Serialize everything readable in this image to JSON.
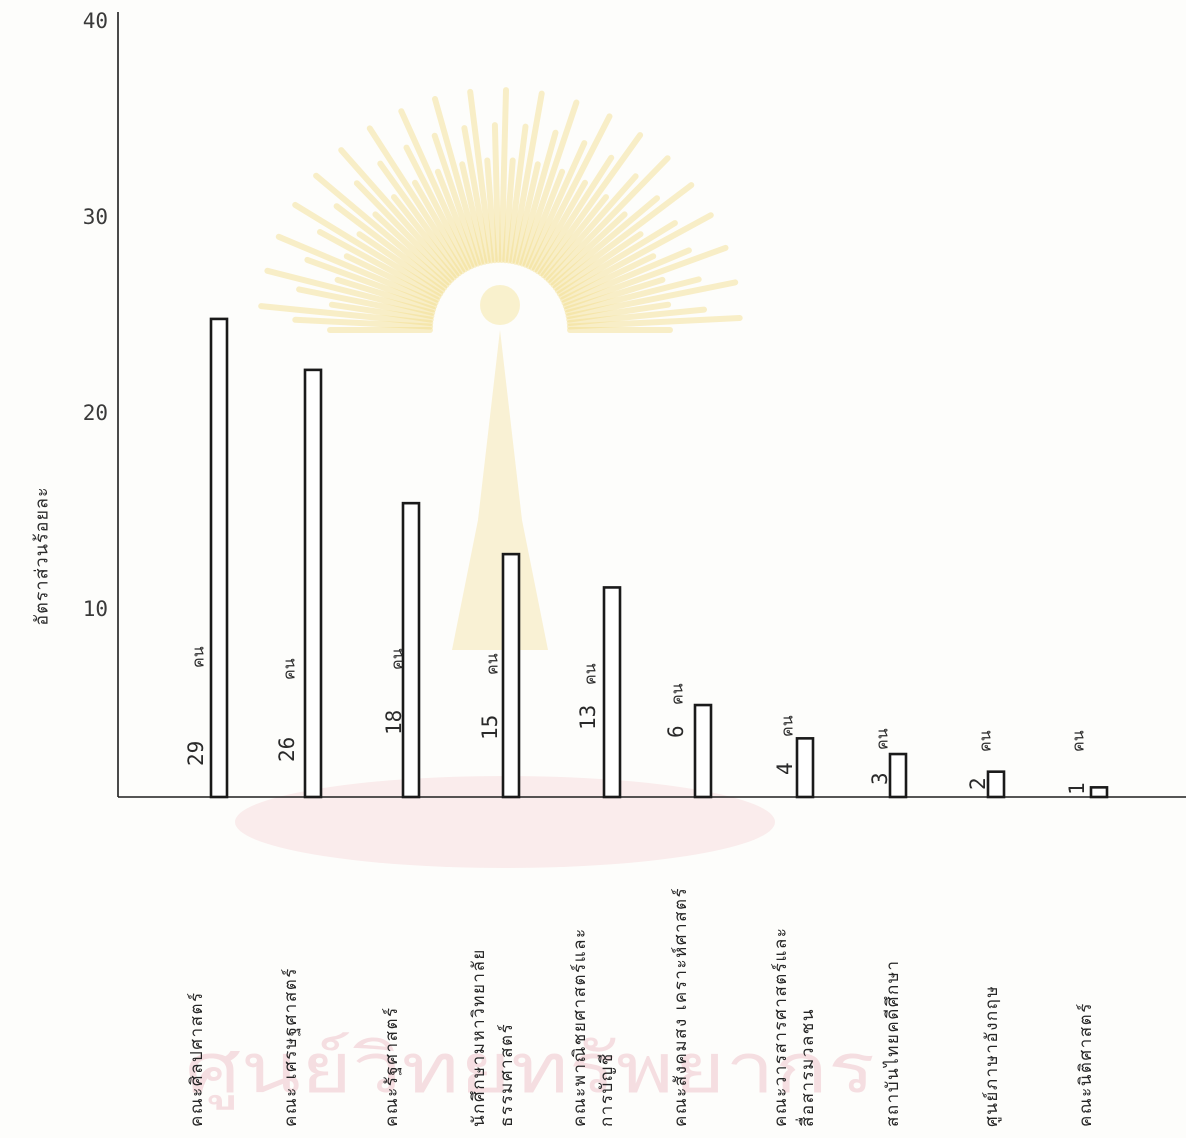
{
  "chart_data": {
    "type": "bar",
    "title": "",
    "xlabel": "",
    "ylabel": "อัตราส่วนร้อยละ",
    "ylim": [
      0,
      40
    ],
    "yticks": [
      10,
      20,
      30,
      40
    ],
    "grid": false,
    "categories": [
      [
        "คณะศิลปศาสตร์"
      ],
      [
        "คณะ เศรษฐศาสตร์"
      ],
      [
        "คณะรัฐศาสตร์"
      ],
      [
        "นักศึกษามหาวิทยาลัย",
        "ธรรมศาสตร์"
      ],
      [
        "คณะพาณิชยศาสตร์และ",
        "การบัญชี"
      ],
      [
        "คณะสังคมสง เคราะห์ศาสตร์"
      ],
      [
        "คณะวารสารศาสตร์และ",
        "สื่อสารมวลชน"
      ],
      [
        "สถาบันไทยคดีศึกษา"
      ],
      [
        "ศูนย์ภาษาอังกฤษ"
      ],
      [
        "คณะนิติศาสตร์"
      ]
    ],
    "values": [
      24.8,
      22.2,
      15.4,
      12.8,
      11.1,
      5.1,
      3.4,
      2.6,
      1.7,
      0.9
    ],
    "counts": [
      29,
      26,
      18,
      15,
      13,
      6,
      4,
      3,
      2,
      1
    ],
    "count_unit": "คน"
  },
  "watermark": {
    "text": "ศูนย์วิทยทรัพยากร"
  },
  "colors": {
    "bar_outline": "#1a1a1a",
    "watermark_seal": "#f3dd8a",
    "watermark_ribbon": "#f0b2b5",
    "watermark_text": "#e8a7b2"
  }
}
